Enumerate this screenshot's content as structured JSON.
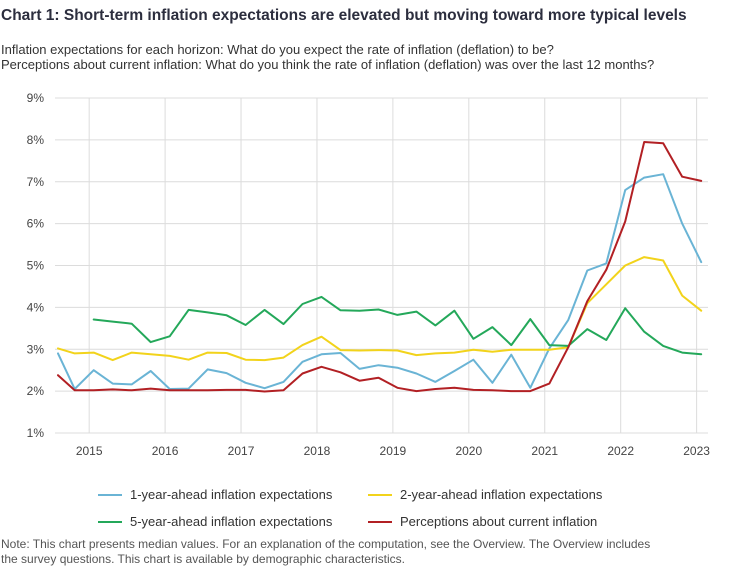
{
  "chart_data": {
    "type": "line",
    "title": "Chart 1: Short-term inflation expectations are elevated but moving toward more typical levels",
    "subtitle_lines": [
      "Inflation expectations for each horizon: What do you expect the rate of inflation (deflation) to be?",
      "Perceptions about current inflation: What do you think the rate of inflation (deflation) was over the last 12 months?"
    ],
    "xlabel": "",
    "ylabel": "",
    "ylim": [
      1,
      9
    ],
    "xlim": [
      2014.55,
      2023.15
    ],
    "yticks": [
      1,
      2,
      3,
      4,
      5,
      6,
      7,
      8,
      9
    ],
    "ytick_labels": [
      "1%",
      "2%",
      "3%",
      "4%",
      "5%",
      "6%",
      "7%",
      "8%",
      "9%"
    ],
    "xticks": [
      2015,
      2016,
      2017,
      2018,
      2019,
      2020,
      2021,
      2022,
      2023
    ],
    "xtick_labels": [
      "2015",
      "2016",
      "2017",
      "2018",
      "2019",
      "2020",
      "2021",
      "2022",
      "2023"
    ],
    "grid": true,
    "legend_position": "bottom",
    "series": [
      {
        "name": "1-year-ahead inflation expectations",
        "color": "#6ab4d5",
        "x": [
          2014.59,
          2014.81,
          2015.06,
          2015.31,
          2015.56,
          2015.81,
          2016.06,
          2016.31,
          2016.56,
          2016.81,
          2017.06,
          2017.31,
          2017.56,
          2017.81,
          2018.06,
          2018.31,
          2018.56,
          2018.81,
          2019.06,
          2019.31,
          2019.56,
          2019.81,
          2020.06,
          2020.31,
          2020.56,
          2020.81,
          2021.06,
          2021.31,
          2021.56,
          2021.81,
          2022.06,
          2022.31,
          2022.56,
          2022.81,
          2023.06
        ],
        "y": [
          2.9,
          2.05,
          2.5,
          2.18,
          2.16,
          2.48,
          2.05,
          2.06,
          2.52,
          2.43,
          2.2,
          2.07,
          2.22,
          2.7,
          2.88,
          2.91,
          2.53,
          2.62,
          2.56,
          2.42,
          2.22,
          2.48,
          2.75,
          2.2,
          2.87,
          2.08,
          3.02,
          3.7,
          4.88,
          5.05,
          6.8,
          7.1,
          7.18,
          6.0,
          5.08
        ]
      },
      {
        "name": "2-year-ahead inflation expectations",
        "color": "#f2d31b",
        "x": [
          2014.59,
          2014.81,
          2015.06,
          2015.31,
          2015.56,
          2015.81,
          2016.06,
          2016.31,
          2016.56,
          2016.81,
          2017.06,
          2017.31,
          2017.56,
          2017.81,
          2018.06,
          2018.31,
          2018.56,
          2018.81,
          2019.06,
          2019.31,
          2019.56,
          2019.81,
          2020.06,
          2020.31,
          2020.56,
          2020.81,
          2021.06,
          2021.31,
          2021.56,
          2021.81,
          2022.06,
          2022.31,
          2022.56,
          2022.81,
          2023.06
        ],
        "y": [
          3.02,
          2.9,
          2.92,
          2.74,
          2.92,
          2.88,
          2.84,
          2.75,
          2.92,
          2.91,
          2.75,
          2.74,
          2.8,
          3.1,
          3.3,
          2.98,
          2.97,
          2.98,
          2.97,
          2.86,
          2.9,
          2.92,
          2.99,
          2.94,
          2.99,
          2.99,
          2.99,
          3.05,
          4.1,
          4.55,
          5.0,
          5.2,
          5.12,
          4.28,
          3.92
        ]
      },
      {
        "name": "5-year-ahead inflation expectations",
        "color": "#24a85a",
        "x": [
          2015.06,
          2015.31,
          2015.56,
          2015.81,
          2016.06,
          2016.31,
          2016.56,
          2016.81,
          2017.06,
          2017.31,
          2017.56,
          2017.81,
          2018.06,
          2018.31,
          2018.56,
          2018.81,
          2019.06,
          2019.31,
          2019.56,
          2019.81,
          2020.06,
          2020.31,
          2020.56,
          2020.81,
          2021.06,
          2021.31,
          2021.56,
          2021.81,
          2022.06,
          2022.31,
          2022.56,
          2022.81,
          2023.06
        ],
        "y": [
          3.71,
          3.66,
          3.61,
          3.17,
          3.31,
          3.94,
          3.88,
          3.81,
          3.58,
          3.94,
          3.6,
          4.08,
          4.25,
          3.93,
          3.92,
          3.95,
          3.82,
          3.9,
          3.57,
          3.92,
          3.25,
          3.53,
          3.1,
          3.72,
          3.1,
          3.08,
          3.48,
          3.22,
          3.98,
          3.42,
          3.08,
          2.92,
          2.88
        ]
      },
      {
        "name": "Perceptions about current inflation",
        "color": "#b22024",
        "x": [
          2014.59,
          2014.81,
          2015.06,
          2015.31,
          2015.56,
          2015.81,
          2016.06,
          2016.31,
          2016.56,
          2016.81,
          2017.06,
          2017.31,
          2017.56,
          2017.81,
          2018.06,
          2018.31,
          2018.56,
          2018.81,
          2019.06,
          2019.31,
          2019.56,
          2019.81,
          2020.06,
          2020.31,
          2020.56,
          2020.81,
          2021.06,
          2021.31,
          2021.56,
          2021.81,
          2022.06,
          2022.31,
          2022.56,
          2022.81,
          2023.06
        ],
        "y": [
          2.38,
          2.02,
          2.02,
          2.04,
          2.02,
          2.06,
          2.02,
          2.02,
          2.02,
          2.03,
          2.03,
          1.99,
          2.02,
          2.42,
          2.58,
          2.45,
          2.25,
          2.32,
          2.08,
          2.0,
          2.05,
          2.08,
          2.03,
          2.02,
          2.0,
          2.0,
          2.18,
          3.05,
          4.15,
          4.9,
          6.05,
          7.95,
          7.92,
          7.12,
          7.02
        ]
      }
    ]
  },
  "note_lines": [
    "Note: This chart presents median values. For an explanation of the computation, see the Overview. The Overview includes",
    "the survey questions. This chart is available by demographic characteristics."
  ]
}
